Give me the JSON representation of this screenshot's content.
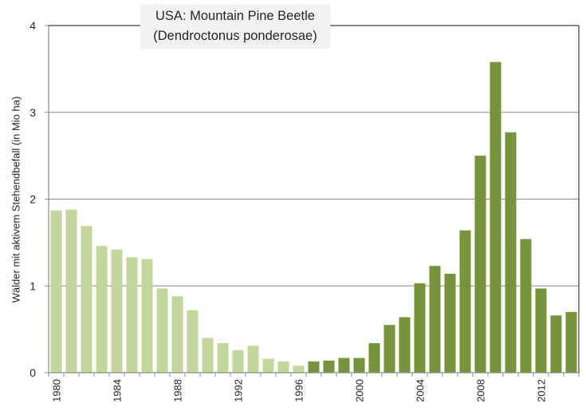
{
  "chart_data": {
    "type": "bar",
    "title": "USA: Mountain Pine Beetle",
    "subtitle": "(Dendroctonus ponderosae)",
    "xlabel": "",
    "ylabel": "Wälder mit aktivem Stehendbefall (in Mio ha)",
    "ylim": [
      0,
      4
    ],
    "yticks": [
      "0",
      "1",
      "2",
      "3",
      "4"
    ],
    "grid": true,
    "legend": "none",
    "categories": [
      1980,
      1981,
      1982,
      1983,
      1984,
      1985,
      1986,
      1987,
      1988,
      1989,
      1990,
      1991,
      1992,
      1993,
      1994,
      1995,
      1996,
      1997,
      1998,
      1999,
      2000,
      2001,
      2002,
      2003,
      2004,
      2005,
      2006,
      2007,
      2008,
      2009,
      2010,
      2011,
      2012,
      2013,
      2014
    ],
    "xtick_labels": [
      "1980",
      "1984",
      "1988",
      "1992",
      "1996",
      "2000",
      "2004",
      "2008",
      "2012"
    ],
    "values": [
      1.87,
      1.88,
      1.69,
      1.46,
      1.42,
      1.33,
      1.31,
      0.97,
      0.88,
      0.72,
      0.4,
      0.34,
      0.26,
      0.31,
      0.16,
      0.13,
      0.08,
      0.13,
      0.14,
      0.17,
      0.17,
      0.34,
      0.55,
      0.64,
      1.03,
      1.23,
      1.14,
      1.64,
      2.5,
      3.58,
      2.77,
      1.54,
      0.97,
      0.66,
      0.7
    ],
    "series_colors": {
      "light_until": 1996,
      "light": "#c3d69b",
      "dark": "#77933c"
    }
  }
}
